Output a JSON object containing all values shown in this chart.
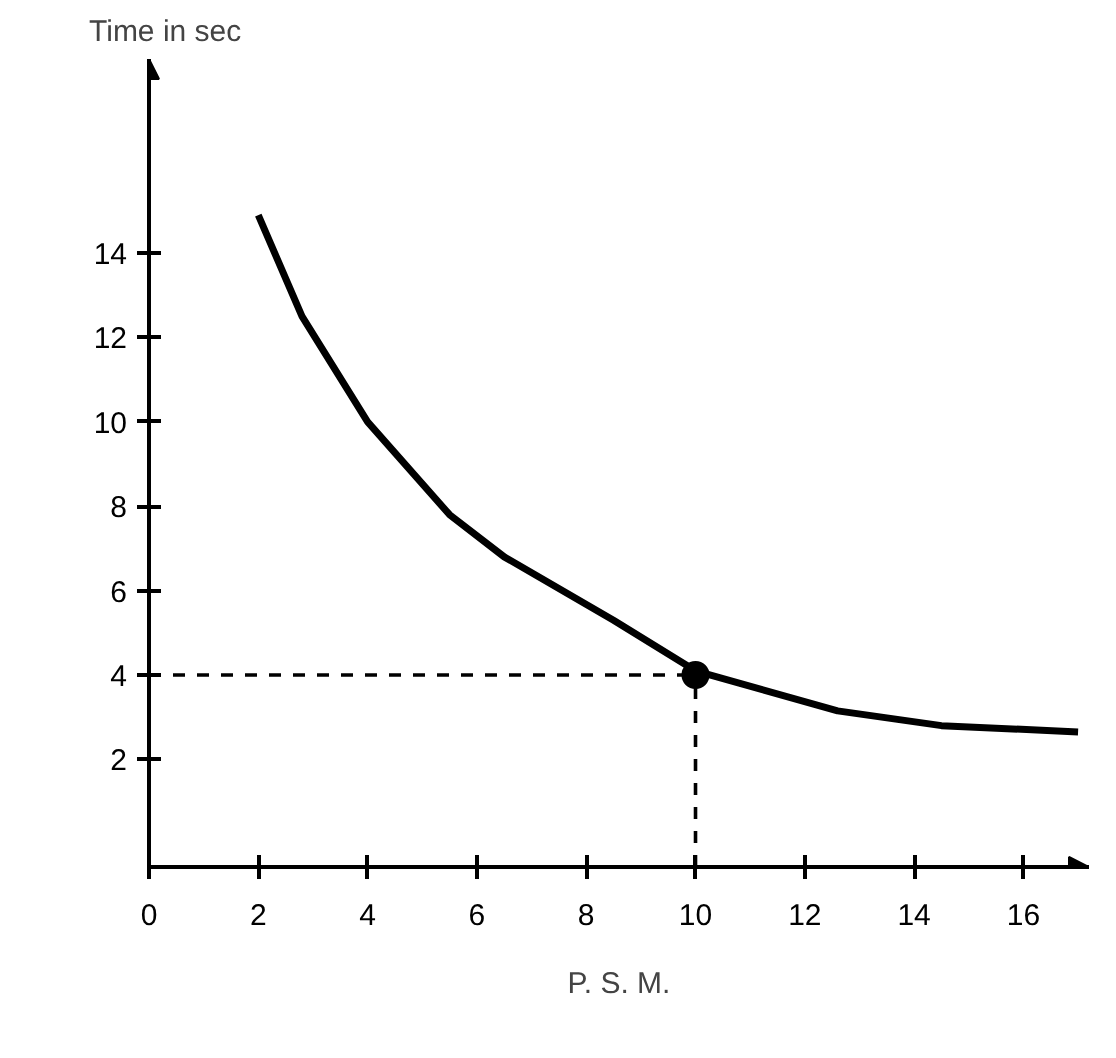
{
  "chart_data": {
    "type": "line",
    "xlabel": "P. S. M.",
    "ylabel": "Time in sec",
    "xlim": [
      0,
      17.2
    ],
    "ylim": [
      -0.55,
      18.6
    ],
    "xticks": [
      0,
      2,
      4,
      6,
      8,
      10,
      12,
      14,
      16
    ],
    "yticks": [
      2,
      4,
      6,
      8,
      10,
      12,
      14
    ],
    "grid": false,
    "series": [
      {
        "color": "#000000",
        "x": [
          2.0,
          2.8,
          4.0,
          5.5,
          6.5,
          8.5,
          10.0,
          12.6,
          14.5,
          17.0
        ],
        "values": [
          14.9,
          12.5,
          10.0,
          7.8,
          6.8,
          5.3,
          4.1,
          3.15,
          2.8,
          2.65
        ]
      },
      {
        "type": "scatter",
        "color": "#000000",
        "marker": "circle",
        "x": [
          10
        ],
        "values": [
          4
        ]
      }
    ],
    "ref_lines": [
      {
        "axis": "x",
        "value": 10,
        "line_style": "dashed"
      },
      {
        "axis": "y",
        "value": 4,
        "line_style": "dashed"
      }
    ]
  }
}
